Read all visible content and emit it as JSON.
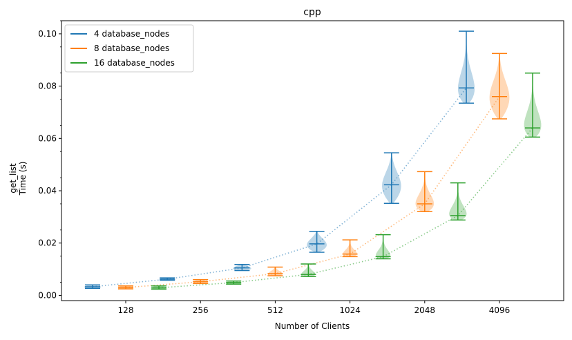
{
  "chart_data": {
    "type": "violin",
    "title": "cpp",
    "xlabel": "Number of Clients",
    "ylabel_lines": [
      "get_list",
      "Time (s)"
    ],
    "categories": [
      "128",
      "256",
      "512",
      "1024",
      "2048",
      "4096"
    ],
    "ylim": [
      -0.002,
      0.105
    ],
    "yticks": [
      "0.00",
      "0.02",
      "0.04",
      "0.06",
      "0.08",
      "0.10"
    ],
    "ytick_values": [
      0.0,
      0.02,
      0.04,
      0.06,
      0.08,
      0.1
    ],
    "grid": false,
    "legend_position": "top-left",
    "series": [
      {
        "name": "4 database_nodes",
        "color": "#1f77b4",
        "offset": -1,
        "min": [
          0.0027,
          0.0058,
          0.0095,
          0.0165,
          0.0352,
          0.0735
        ],
        "max": [
          0.004,
          0.0067,
          0.0118,
          0.0245,
          0.0545,
          0.101
        ],
        "mean": [
          0.0033,
          0.0062,
          0.0105,
          0.0197,
          0.0423,
          0.0793
        ],
        "median": [
          0.0032,
          0.0061,
          0.0103,
          0.0193,
          0.0418,
          0.078
        ],
        "width": [
          0.5,
          0.45,
          0.6,
          0.7,
          0.65,
          0.55
        ]
      },
      {
        "name": "8 database_nodes",
        "color": "#ff7f0e",
        "offset": 0,
        "min": [
          0.0025,
          0.0045,
          0.0075,
          0.0148,
          0.032,
          0.0675
        ],
        "max": [
          0.0036,
          0.006,
          0.0108,
          0.0212,
          0.0473,
          0.0925
        ],
        "mean": [
          0.003,
          0.0052,
          0.0083,
          0.0158,
          0.035,
          0.076
        ],
        "median": [
          0.0029,
          0.005,
          0.008,
          0.0153,
          0.0345,
          0.0755
        ],
        "width": [
          0.4,
          0.4,
          0.45,
          0.45,
          0.65,
          0.7
        ]
      },
      {
        "name": "16 database_nodes",
        "color": "#2ca02c",
        "offset": 1,
        "min": [
          0.0024,
          0.0043,
          0.0072,
          0.014,
          0.0288,
          0.0605
        ],
        "max": [
          0.0036,
          0.0055,
          0.012,
          0.0232,
          0.043,
          0.085
        ],
        "mean": [
          0.0029,
          0.0049,
          0.008,
          0.0148,
          0.0305,
          0.064
        ],
        "median": [
          0.0028,
          0.0048,
          0.0078,
          0.0145,
          0.0302,
          0.0638
        ],
        "width": [
          0.4,
          0.4,
          0.4,
          0.5,
          0.65,
          0.6
        ]
      }
    ]
  }
}
